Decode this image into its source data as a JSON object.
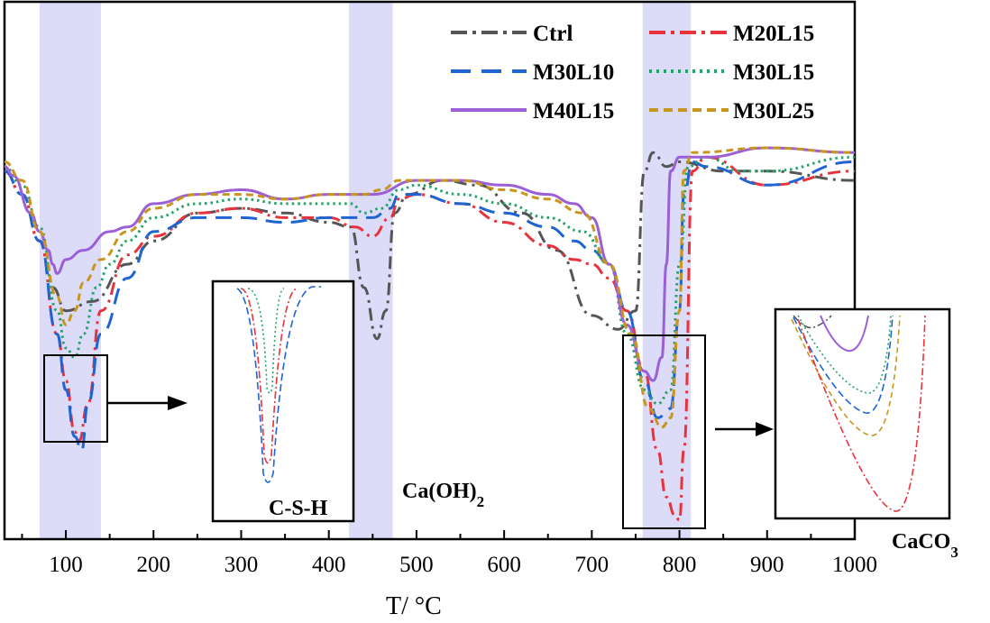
{
  "chart_data": {
    "type": "line",
    "title": "",
    "xlabel": "T/ °C",
    "ylabel": "",
    "xlim": [
      30,
      1000
    ],
    "ylim": [
      0,
      1
    ],
    "x_ticks": [
      "100",
      "200",
      "300",
      "400",
      "500",
      "600",
      "700",
      "800",
      "900",
      "1000"
    ],
    "highlight_bands": [
      [
        70,
        140
      ],
      [
        423,
        473
      ],
      [
        758,
        813
      ]
    ],
    "annotations": {
      "csh": "C-S-H",
      "caoh2": "Ca(OH)2",
      "caco3": "CaCO3"
    },
    "series": [
      {
        "name": "Ctrl",
        "color": "#555555",
        "dash": "dashdot",
        "x": [
          30,
          50,
          70,
          85,
          100,
          130,
          170,
          200,
          250,
          300,
          350,
          400,
          425,
          440,
          455,
          465,
          475,
          490,
          530,
          570,
          620,
          660,
          700,
          730,
          750,
          760,
          770,
          785,
          800,
          850,
          900,
          1000
        ],
        "values": [
          0.75,
          0.7,
          0.6,
          0.5,
          0.45,
          0.47,
          0.55,
          0.6,
          0.66,
          0.67,
          0.66,
          0.64,
          0.63,
          0.5,
          0.39,
          0.45,
          0.66,
          0.7,
          0.73,
          0.72,
          0.66,
          0.58,
          0.44,
          0.41,
          0.45,
          0.75,
          0.79,
          0.76,
          0.77,
          0.75,
          0.75,
          0.73
        ]
      },
      {
        "name": "M20L15",
        "color": "#e8323c",
        "dash": "dashdot",
        "x": [
          30,
          50,
          70,
          90,
          100,
          110,
          115,
          125,
          140,
          170,
          200,
          250,
          300,
          350,
          400,
          430,
          450,
          470,
          480,
          500,
          550,
          600,
          650,
          680,
          700,
          720,
          740,
          760,
          775,
          785,
          795,
          800,
          805,
          815,
          830,
          900,
          1000
        ],
        "values": [
          0.75,
          0.7,
          0.6,
          0.4,
          0.3,
          0.19,
          0.17,
          0.25,
          0.45,
          0.57,
          0.61,
          0.66,
          0.67,
          0.65,
          0.65,
          0.63,
          0.61,
          0.65,
          0.69,
          0.7,
          0.68,
          0.64,
          0.59,
          0.56,
          0.55,
          0.52,
          0.45,
          0.32,
          0.15,
          0.05,
          0.01,
          0.0,
          0.15,
          0.75,
          0.78,
          0.72,
          0.75
        ]
      },
      {
        "name": "M30L10",
        "color": "#1e64d2",
        "dash": "longdash",
        "x": [
          30,
          50,
          70,
          90,
          100,
          110,
          118,
          125,
          140,
          170,
          200,
          250,
          300,
          350,
          400,
          430,
          450,
          470,
          480,
          500,
          550,
          600,
          650,
          680,
          700,
          720,
          740,
          760,
          775,
          790,
          800,
          805,
          815,
          830,
          900,
          1000
        ],
        "values": [
          0.75,
          0.7,
          0.6,
          0.4,
          0.28,
          0.18,
          0.15,
          0.25,
          0.4,
          0.52,
          0.62,
          0.65,
          0.65,
          0.64,
          0.65,
          0.65,
          0.65,
          0.67,
          0.7,
          0.7,
          0.68,
          0.66,
          0.63,
          0.6,
          0.58,
          0.55,
          0.45,
          0.3,
          0.22,
          0.24,
          0.45,
          0.7,
          0.77,
          0.76,
          0.72,
          0.77
        ]
      },
      {
        "name": "M30L15",
        "color": "#26a36a",
        "dash": "dot",
        "x": [
          30,
          50,
          70,
          90,
          100,
          110,
          120,
          135,
          150,
          170,
          200,
          250,
          300,
          350,
          400,
          425,
          440,
          460,
          480,
          500,
          550,
          600,
          650,
          690,
          720,
          740,
          760,
          775,
          790,
          800,
          810,
          830,
          870,
          900,
          1000
        ],
        "values": [
          0.76,
          0.72,
          0.63,
          0.45,
          0.37,
          0.35,
          0.4,
          0.5,
          0.55,
          0.6,
          0.65,
          0.68,
          0.69,
          0.68,
          0.68,
          0.68,
          0.66,
          0.67,
          0.71,
          0.72,
          0.7,
          0.68,
          0.65,
          0.62,
          0.55,
          0.4,
          0.28,
          0.25,
          0.28,
          0.55,
          0.76,
          0.78,
          0.75,
          0.75,
          0.78
        ]
      },
      {
        "name": "M40L15",
        "color": "#9b5fd6",
        "dash": "solid",
        "x": [
          30,
          40,
          60,
          70,
          80,
          85,
          90,
          100,
          120,
          150,
          170,
          200,
          250,
          300,
          350,
          400,
          425,
          450,
          500,
          550,
          600,
          650,
          680,
          700,
          720,
          740,
          760,
          770,
          780,
          785,
          790,
          800,
          830,
          900,
          1000
        ],
        "values": [
          0.76,
          0.74,
          0.66,
          0.62,
          0.58,
          0.55,
          0.53,
          0.56,
          0.58,
          0.62,
          0.63,
          0.68,
          0.7,
          0.71,
          0.69,
          0.7,
          0.7,
          0.7,
          0.73,
          0.73,
          0.72,
          0.7,
          0.68,
          0.65,
          0.55,
          0.42,
          0.32,
          0.3,
          0.35,
          0.55,
          0.75,
          0.78,
          0.78,
          0.8,
          0.79
        ]
      },
      {
        "name": "M30L25",
        "color": "#c8961e",
        "dash": "dash",
        "x": [
          30,
          50,
          70,
          90,
          100,
          110,
          120,
          140,
          170,
          200,
          250,
          300,
          350,
          400,
          425,
          440,
          460,
          480,
          500,
          550,
          600,
          650,
          690,
          720,
          745,
          765,
          780,
          790,
          800,
          805,
          815,
          900,
          1000
        ],
        "values": [
          0.77,
          0.73,
          0.62,
          0.48,
          0.42,
          0.45,
          0.51,
          0.56,
          0.62,
          0.67,
          0.7,
          0.7,
          0.69,
          0.7,
          0.7,
          0.7,
          0.71,
          0.73,
          0.73,
          0.73,
          0.71,
          0.69,
          0.66,
          0.55,
          0.4,
          0.24,
          0.2,
          0.22,
          0.45,
          0.75,
          0.79,
          0.8,
          0.79
        ]
      }
    ]
  }
}
